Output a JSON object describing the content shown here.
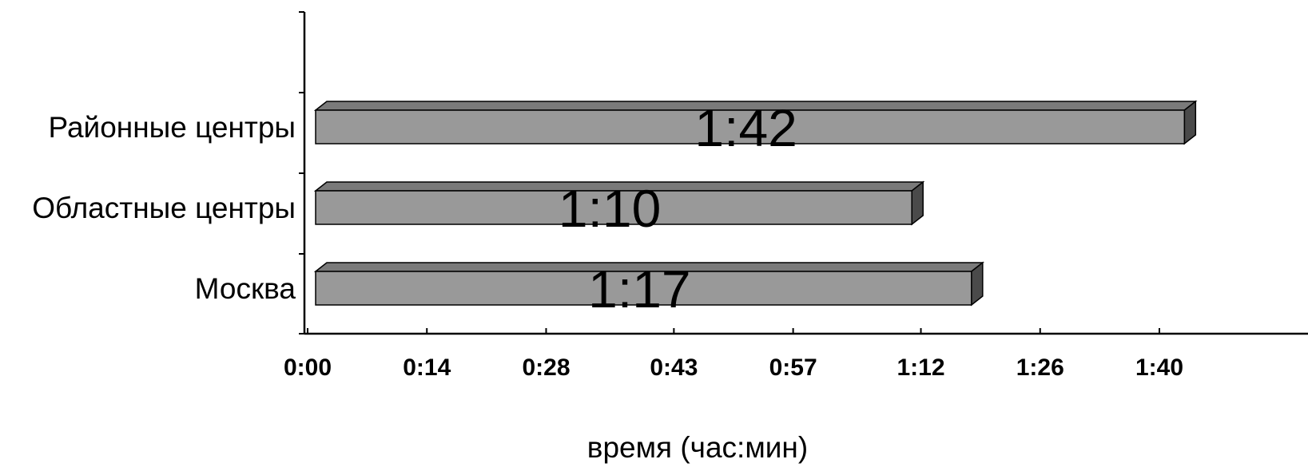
{
  "chart_data": {
    "type": "bar",
    "orientation": "horizontal",
    "style": "3d",
    "categories": [
      "Районные центры",
      "Областные центры",
      "Москва"
    ],
    "values": [
      102,
      70,
      77
    ],
    "value_units": "minutes",
    "data_labels": [
      "1:42",
      "1:10",
      "1:17"
    ],
    "x_ticks": [
      0,
      14,
      28,
      43,
      57,
      72,
      86,
      100
    ],
    "x_tick_labels": [
      "0:00",
      "0:14",
      "0:28",
      "0:43",
      "0:57",
      "1:12",
      "1:26",
      "1:40"
    ],
    "xlim": [
      0,
      112
    ],
    "xlabel": "время (час:мин)",
    "ylabel": "",
    "title": "",
    "grid": false,
    "legend": "none",
    "colors": {
      "bar_front": "#999999",
      "bar_top": "#7a7a7a",
      "bar_side": "#4a4a4a",
      "axis": "#000000"
    }
  }
}
